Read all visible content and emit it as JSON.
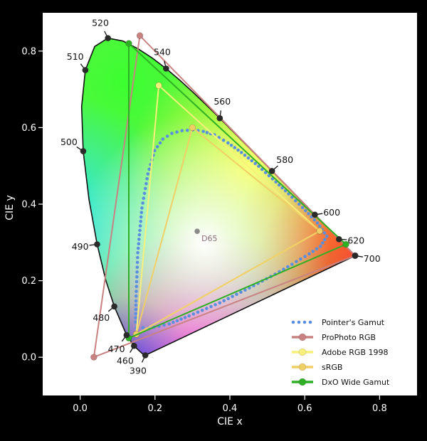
{
  "chart_data": {
    "type": "scatter",
    "title": "",
    "xlabel": "CIE x",
    "ylabel": "CIE y",
    "xlim": [
      -0.1,
      0.9
    ],
    "ylim": [
      -0.1,
      0.9
    ],
    "xticks": [
      0.0,
      0.2,
      0.4,
      0.6,
      0.8
    ],
    "yticks": [
      0.0,
      0.2,
      0.4,
      0.6,
      0.8
    ],
    "xtick_labels": [
      "0.0",
      "0.2",
      "0.4",
      "0.6",
      "0.8"
    ],
    "ytick_labels": [
      "0.0",
      "0.2",
      "0.4",
      "0.6",
      "0.8"
    ],
    "grid": false,
    "legend_position": "bottom-right",
    "white_point": {
      "label": "D65",
      "x": 0.3127,
      "y": 0.329
    },
    "spectral_locus": [
      [
        0.1741,
        0.005
      ],
      [
        0.1738,
        0.0049
      ],
      [
        0.1736,
        0.0049
      ],
      [
        0.1726,
        0.0048
      ],
      [
        0.1714,
        0.0051
      ],
      [
        0.1689,
        0.0069
      ],
      [
        0.1644,
        0.0109
      ],
      [
        0.1566,
        0.0177
      ],
      [
        0.144,
        0.0297
      ],
      [
        0.1241,
        0.0578
      ],
      [
        0.0913,
        0.1327
      ],
      [
        0.0687,
        0.2007
      ],
      [
        0.0454,
        0.295
      ],
      [
        0.0235,
        0.4127
      ],
      [
        0.0082,
        0.5384
      ],
      [
        0.0039,
        0.6548
      ],
      [
        0.0139,
        0.7502
      ],
      [
        0.0389,
        0.812
      ],
      [
        0.0743,
        0.8338
      ],
      [
        0.1142,
        0.8262
      ],
      [
        0.1547,
        0.8059
      ],
      [
        0.1929,
        0.7816
      ],
      [
        0.2296,
        0.7543
      ],
      [
        0.2658,
        0.7243
      ],
      [
        0.3016,
        0.6923
      ],
      [
        0.3373,
        0.6589
      ],
      [
        0.3731,
        0.6245
      ],
      [
        0.4087,
        0.5896
      ],
      [
        0.4441,
        0.5547
      ],
      [
        0.4788,
        0.5202
      ],
      [
        0.5125,
        0.4866
      ],
      [
        0.5448,
        0.4544
      ],
      [
        0.5752,
        0.4242
      ],
      [
        0.6029,
        0.3965
      ],
      [
        0.627,
        0.3725
      ],
      [
        0.6482,
        0.3514
      ],
      [
        0.6658,
        0.334
      ],
      [
        0.6801,
        0.3197
      ],
      [
        0.6915,
        0.3083
      ],
      [
        0.7006,
        0.2993
      ],
      [
        0.7079,
        0.292
      ],
      [
        0.714,
        0.2859
      ],
      [
        0.719,
        0.2809
      ],
      [
        0.723,
        0.277
      ],
      [
        0.726,
        0.274
      ],
      [
        0.7283,
        0.2717
      ],
      [
        0.7347,
        0.2653
      ]
    ],
    "wavelength_markers": [
      {
        "label": "390",
        "x": 0.1741,
        "y": 0.005
      },
      {
        "label": "460",
        "x": 0.144,
        "y": 0.0297
      },
      {
        "label": "470",
        "x": 0.1241,
        "y": 0.0578
      },
      {
        "label": "480",
        "x": 0.0913,
        "y": 0.1327
      },
      {
        "label": "490",
        "x": 0.0454,
        "y": 0.295
      },
      {
        "label": "500",
        "x": 0.0082,
        "y": 0.5384
      },
      {
        "label": "510",
        "x": 0.0139,
        "y": 0.7502
      },
      {
        "label": "520",
        "x": 0.0743,
        "y": 0.8338
      },
      {
        "label": "540",
        "x": 0.2296,
        "y": 0.7543
      },
      {
        "label": "560",
        "x": 0.3731,
        "y": 0.6245
      },
      {
        "label": "580",
        "x": 0.5125,
        "y": 0.4866
      },
      {
        "label": "600",
        "x": 0.627,
        "y": 0.3725
      },
      {
        "label": "620",
        "x": 0.6915,
        "y": 0.3083
      },
      {
        "label": "700",
        "x": 0.7347,
        "y": 0.2653
      }
    ],
    "series": [
      {
        "name": "Pointer's Gamut",
        "style": "dotted",
        "color": "#5a8fe0",
        "points": [
          [
            0.659,
            0.316
          ],
          [
            0.634,
            0.351
          ],
          [
            0.594,
            0.391
          ],
          [
            0.557,
            0.427
          ],
          [
            0.523,
            0.458
          ],
          [
            0.477,
            0.499
          ],
          [
            0.431,
            0.535
          ],
          [
            0.395,
            0.56
          ],
          [
            0.359,
            0.581
          ],
          [
            0.329,
            0.59
          ],
          [
            0.301,
            0.594
          ],
          [
            0.272,
            0.592
          ],
          [
            0.245,
            0.585
          ],
          [
            0.221,
            0.57
          ],
          [
            0.199,
            0.54
          ],
          [
            0.181,
            0.479
          ],
          [
            0.165,
            0.39
          ],
          [
            0.154,
            0.273
          ],
          [
            0.149,
            0.147
          ],
          [
            0.148,
            0.092
          ],
          [
            0.15,
            0.077
          ],
          [
            0.168,
            0.077
          ],
          [
            0.197,
            0.078
          ],
          [
            0.238,
            0.087
          ],
          [
            0.291,
            0.108
          ],
          [
            0.373,
            0.142
          ],
          [
            0.452,
            0.181
          ],
          [
            0.521,
            0.217
          ],
          [
            0.566,
            0.243
          ],
          [
            0.612,
            0.27
          ],
          [
            0.642,
            0.29
          ],
          [
            0.659,
            0.316
          ]
        ]
      },
      {
        "name": "ProPhoto RGB",
        "style": "line-marker",
        "color": "#c98282",
        "points": [
          [
            0.7347,
            0.2653
          ],
          [
            0.1596,
            0.8404
          ],
          [
            0.0366,
            0.0001
          ],
          [
            0.7347,
            0.2653
          ]
        ]
      },
      {
        "name": "Adobe RGB 1998",
        "style": "line-marker",
        "color": "#f7f07a",
        "points": [
          [
            0.64,
            0.33
          ],
          [
            0.21,
            0.71
          ],
          [
            0.15,
            0.06
          ],
          [
            0.64,
            0.33
          ]
        ]
      },
      {
        "name": "sRGB",
        "style": "line-marker",
        "color": "#f0cf66",
        "points": [
          [
            0.64,
            0.33
          ],
          [
            0.3,
            0.6
          ],
          [
            0.15,
            0.06
          ],
          [
            0.64,
            0.33
          ]
        ]
      },
      {
        "name": "DxO Wide Gamut",
        "style": "line-marker",
        "color": "#2fb024",
        "points": [
          [
            0.71,
            0.295
          ],
          [
            0.13,
            0.82
          ],
          [
            0.13,
            0.05
          ],
          [
            0.71,
            0.295
          ]
        ]
      }
    ]
  }
}
